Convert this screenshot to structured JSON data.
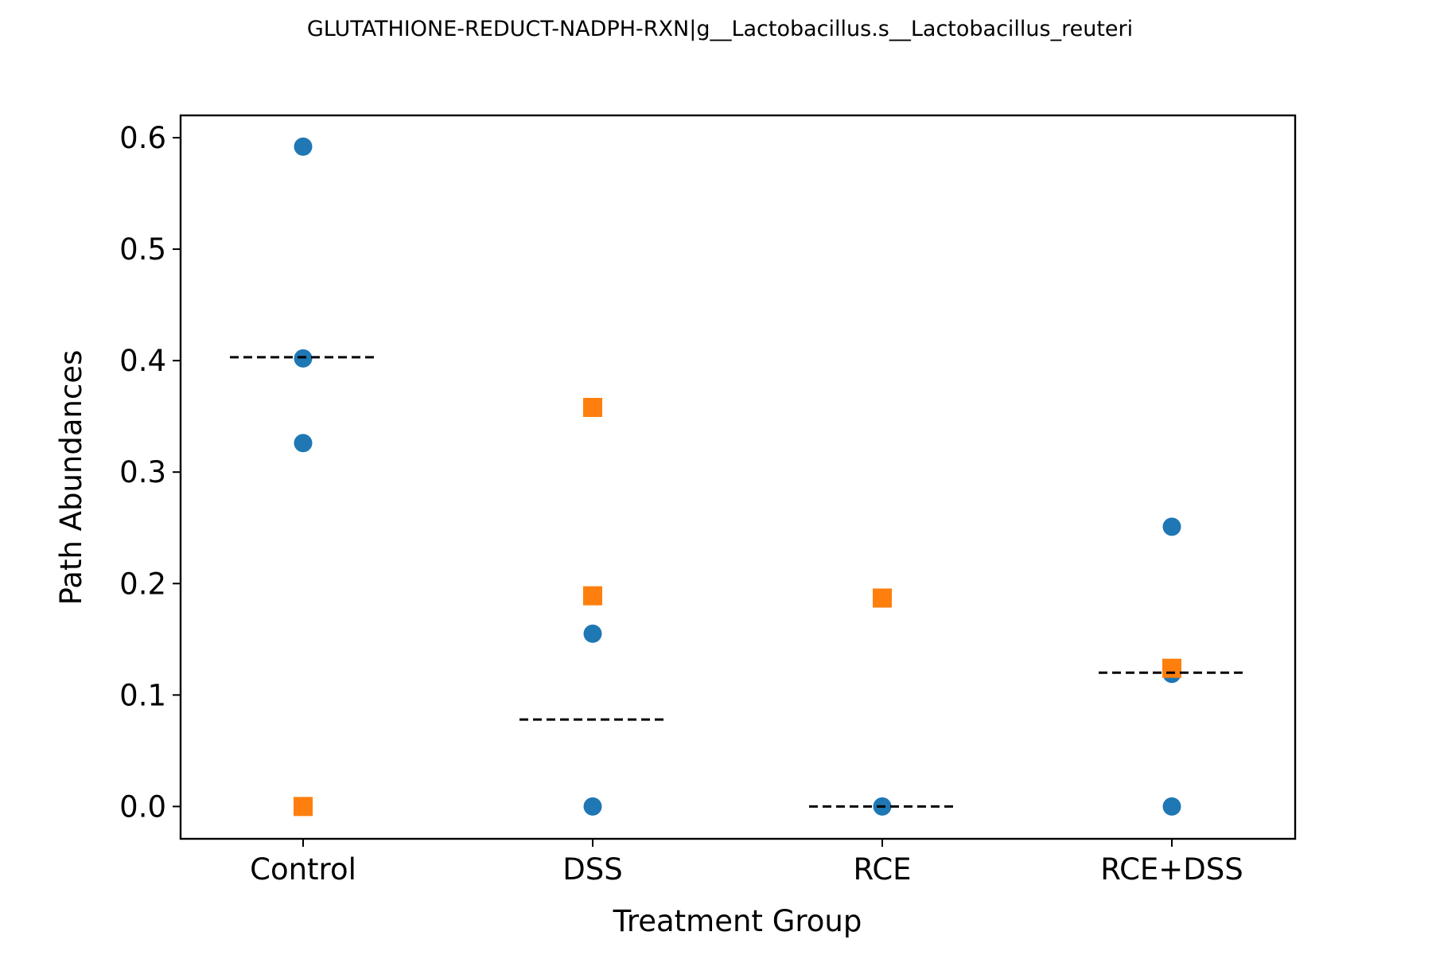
{
  "chart_data": {
    "type": "scatter",
    "title": "GLUTATHIONE-REDUCT-NADPH-RXN|g__Lactobacillus.s__Lactobacillus_reuteri",
    "xlabel": "Treatment Group",
    "ylabel": "Path Abundances",
    "categories": [
      "Control",
      "DSS",
      "RCE",
      "RCE+DSS"
    ],
    "ylim": [
      -0.029,
      0.62
    ],
    "yticks": [
      0.0,
      0.1,
      0.2,
      0.3,
      0.4,
      0.5,
      0.6
    ],
    "ytick_labels": [
      "0.0",
      "0.1",
      "0.2",
      "0.3",
      "0.4",
      "0.5",
      "0.6"
    ],
    "grid": false,
    "legend": "none",
    "series": [
      {
        "marker": "circle",
        "color": "#1f77b4",
        "points": [
          {
            "category": "Control",
            "y": 0.592
          },
          {
            "category": "Control",
            "y": 0.402
          },
          {
            "category": "Control",
            "y": 0.326
          },
          {
            "category": "DSS",
            "y": 0.155
          },
          {
            "category": "DSS",
            "y": 0.0
          },
          {
            "category": "RCE",
            "y": 0.0
          },
          {
            "category": "RCE+DSS",
            "y": 0.251
          },
          {
            "category": "RCE+DSS",
            "y": 0.119
          },
          {
            "category": "RCE+DSS",
            "y": 0.0
          }
        ]
      },
      {
        "marker": "square",
        "color": "#ff7f0e",
        "points": [
          {
            "category": "Control",
            "y": 0.0
          },
          {
            "category": "DSS",
            "y": 0.358
          },
          {
            "category": "DSS",
            "y": 0.189
          },
          {
            "category": "RCE",
            "y": 0.187
          },
          {
            "category": "RCE+DSS",
            "y": 0.124
          }
        ]
      }
    ],
    "reference_lines": [
      {
        "category": "Control",
        "y": 0.403,
        "style": "dashed",
        "color": "#000000"
      },
      {
        "category": "DSS",
        "y": 0.078,
        "style": "dashed",
        "color": "#000000"
      },
      {
        "category": "RCE",
        "y": 0.0,
        "style": "dashed",
        "color": "#000000"
      },
      {
        "category": "RCE+DSS",
        "y": 0.12,
        "style": "dashed",
        "color": "#000000"
      }
    ]
  }
}
